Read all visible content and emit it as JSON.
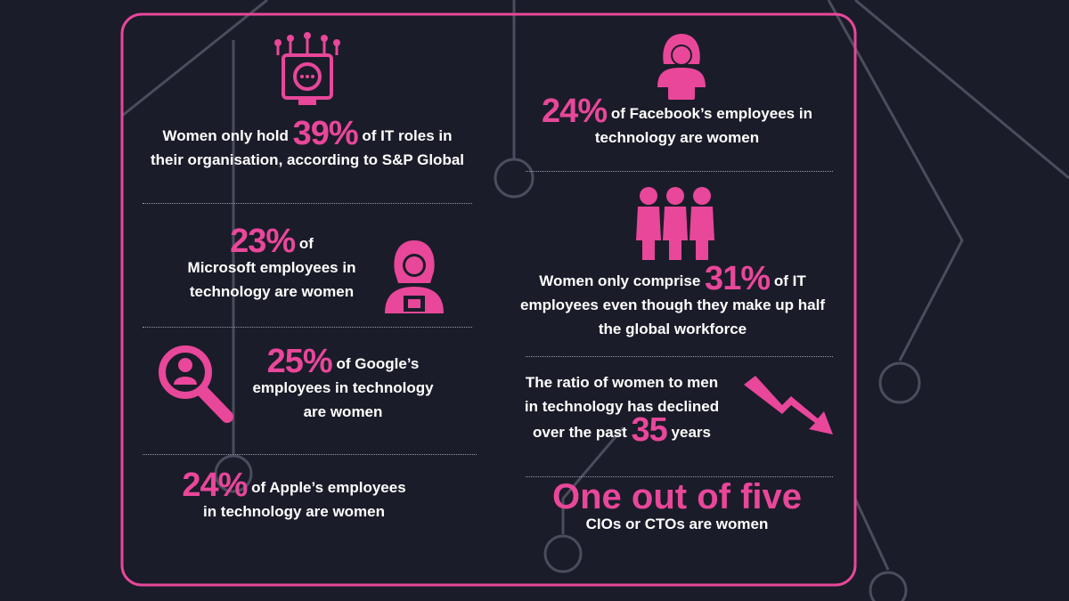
{
  "stats": [
    {
      "lead": "Women only hold",
      "figure": "39%",
      "tail": "of IT roles in",
      "lines": [
        "their organisation, according to S&P Global"
      ]
    },
    {
      "figure": "23%",
      "tail": "of",
      "lines": [
        "Microsoft employees in",
        "technology are women"
      ]
    },
    {
      "figure": "25%",
      "tail": "of Google’s",
      "lines": [
        "employees in technology",
        "are women"
      ]
    },
    {
      "figure": "24%",
      "tail": "of Apple’s employees",
      "lines": [
        "in technology are women"
      ]
    },
    {
      "figure": "24%",
      "tail": "of Facebook’s employees in",
      "lines": [
        "technology are women"
      ]
    },
    {
      "lead": "Women only comprise",
      "figure": "31%",
      "tail": "of IT",
      "lines": [
        "employees even though they make up half",
        "the global workforce"
      ]
    },
    {
      "lines": [
        "The ratio of women to men",
        "in technology has declined"
      ],
      "lead": "over the past",
      "figure": "35",
      "tail": "years"
    },
    {
      "figure": "One out of five",
      "lines": [
        "CIOs or CTOs are women"
      ]
    }
  ]
}
